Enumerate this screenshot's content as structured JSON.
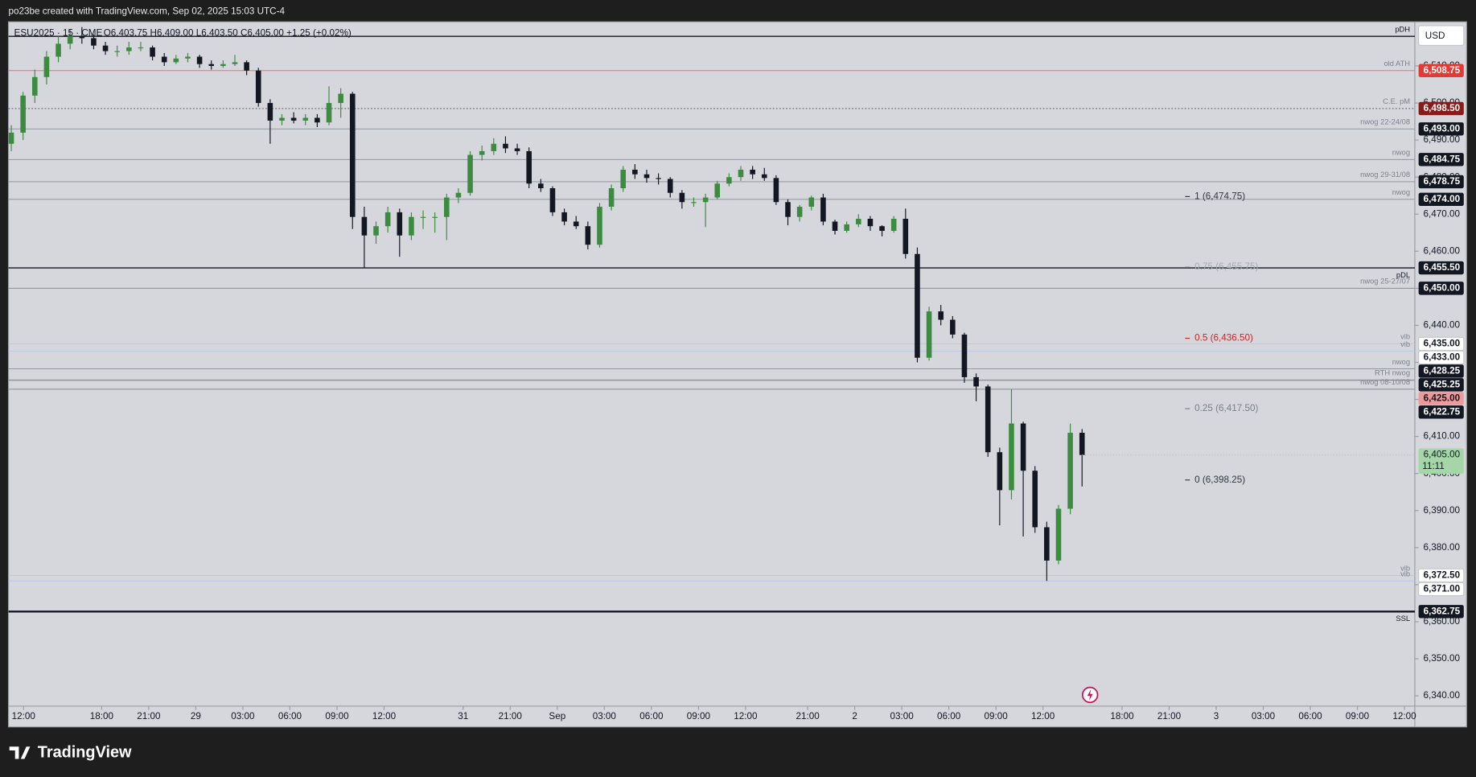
{
  "header": {
    "text": "po23be created with TradingView.com, Sep 02, 2025 15:03 UTC-4"
  },
  "footer": {
    "logo": "TradingView"
  },
  "chart_data": {
    "type": "candlestick",
    "symbol_info": "ESU2025 · 15 · CME",
    "legend_text": "O6,403.75  H6,409.00  L6,403.50  C6,405.00  +1.25 (+0.02%)",
    "currency": "USD",
    "up_color": "#3d8b40",
    "down_color": "#131722",
    "ohlc": [
      [
        6489,
        6494,
        6487,
        6492
      ],
      [
        6492,
        6503,
        6490,
        6502
      ],
      [
        6502,
        6509,
        6500,
        6507
      ],
      [
        6507,
        6514,
        6505,
        6512.5
      ],
      [
        6512.5,
        6518,
        6511,
        6516
      ],
      [
        6516,
        6520,
        6514.5,
        6518
      ],
      [
        6518,
        6520.5,
        6516,
        6517.5
      ],
      [
        6517.5,
        6518.5,
        6514.5,
        6515.5
      ],
      [
        6515.5,
        6516.5,
        6513,
        6514
      ],
      [
        6514,
        6515.5,
        6512.5,
        6514
      ],
      [
        6514,
        6516.5,
        6513,
        6515
      ],
      [
        6515,
        6516.5,
        6514,
        6515
      ],
      [
        6515,
        6515.5,
        6511.5,
        6512.5
      ],
      [
        6512.5,
        6513.5,
        6510,
        6511
      ],
      [
        6511,
        6513,
        6510.5,
        6512
      ],
      [
        6512,
        6513.5,
        6511,
        6512.5
      ],
      [
        6512.5,
        6513,
        6509.5,
        6510.5
      ],
      [
        6510.5,
        6511.5,
        6509,
        6510
      ],
      [
        6510,
        6511.5,
        6509.5,
        6510.5
      ],
      [
        6510.5,
        6513,
        6510,
        6511
      ],
      [
        6511,
        6511.5,
        6507.5,
        6508.75
      ],
      [
        6508.75,
        6509.5,
        6499,
        6500
      ],
      [
        6500,
        6501,
        6489,
        6495.25
      ],
      [
        6495.25,
        6497,
        6494,
        6496
      ],
      [
        6496,
        6497.5,
        6494.5,
        6495.25
      ],
      [
        6495.25,
        6497,
        6494,
        6496
      ],
      [
        6496,
        6497,
        6493.5,
        6494.75
      ],
      [
        6494.75,
        6504.5,
        6494,
        6500
      ],
      [
        6500,
        6504,
        6496,
        6502.5
      ],
      [
        6502.5,
        6503,
        6466,
        6469.25
      ],
      [
        6469.25,
        6472,
        6455.5,
        6464.25
      ],
      [
        6464.25,
        6468,
        6462,
        6466.75
      ],
      [
        6466.75,
        6472,
        6465,
        6470.5
      ],
      [
        6470.5,
        6471.5,
        6458.5,
        6464.25
      ],
      [
        6464.25,
        6470.5,
        6463,
        6469.25
      ],
      [
        6469.25,
        6471,
        6466,
        6469.25
      ],
      [
        6469.25,
        6470.5,
        6465,
        6469.25
      ],
      [
        6469.25,
        6475.5,
        6463,
        6474.5
      ],
      [
        6474.5,
        6477,
        6473,
        6475.75
      ],
      [
        6475.75,
        6487,
        6475,
        6486
      ],
      [
        6486,
        6488.5,
        6484.5,
        6487
      ],
      [
        6487,
        6490.5,
        6486,
        6489
      ],
      [
        6489,
        6491,
        6486.5,
        6487.75
      ],
      [
        6487.75,
        6489,
        6486,
        6487
      ],
      [
        6487,
        6488,
        6477,
        6478.25
      ],
      [
        6478.25,
        6479.5,
        6476,
        6477
      ],
      [
        6477,
        6477.5,
        6469.5,
        6470.5
      ],
      [
        6470.5,
        6471.5,
        6467,
        6468
      ],
      [
        6468,
        6469.5,
        6466,
        6466.75
      ],
      [
        6466.75,
        6468,
        6460.5,
        6461.75
      ],
      [
        6461.75,
        6473,
        6461,
        6472
      ],
      [
        6472,
        6478,
        6471,
        6477
      ],
      [
        6477,
        6483,
        6476,
        6482
      ],
      [
        6482,
        6483.5,
        6479.5,
        6480.75
      ],
      [
        6480.75,
        6482,
        6478.5,
        6479.75
      ],
      [
        6479.75,
        6481,
        6478,
        6479.5
      ],
      [
        6479.5,
        6480,
        6474.5,
        6475.75
      ],
      [
        6475.75,
        6476.5,
        6471.5,
        6473.25
      ],
      [
        6473.25,
        6474.5,
        6472,
        6473.25
      ],
      [
        6473.25,
        6475.5,
        6466.5,
        6474.5
      ],
      [
        6474.5,
        6479,
        6474,
        6478.25
      ],
      [
        6478.25,
        6481,
        6477.5,
        6480
      ],
      [
        6480,
        6483,
        6479,
        6482
      ],
      [
        6482,
        6483,
        6479.5,
        6480.75
      ],
      [
        6480.75,
        6482.5,
        6479,
        6479.75
      ],
      [
        6479.75,
        6480.5,
        6472.5,
        6473.25
      ],
      [
        6473.25,
        6474,
        6467,
        6469.25
      ],
      [
        6469.25,
        6472.5,
        6468,
        6472
      ],
      [
        6472,
        6475,
        6471,
        6474.5
      ],
      [
        6474.5,
        6475.5,
        6467,
        6468
      ],
      [
        6468,
        6468.5,
        6464.5,
        6465.5
      ],
      [
        6465.5,
        6468,
        6465,
        6467.25
      ],
      [
        6467.25,
        6470,
        6466.5,
        6468.75
      ],
      [
        6468.75,
        6469.5,
        6465.5,
        6466.75
      ],
      [
        6466.75,
        6467,
        6464,
        6465.5
      ],
      [
        6465.5,
        6469.5,
        6465,
        6468.75
      ],
      [
        6468.75,
        6471.5,
        6458,
        6459.25
      ],
      [
        6459.25,
        6461,
        6430,
        6431.25
      ],
      [
        6431.25,
        6445,
        6430.5,
        6443.75
      ],
      [
        6443.75,
        6445.5,
        6440,
        6441.5
      ],
      [
        6441.5,
        6442.5,
        6436.5,
        6437.5
      ],
      [
        6437.5,
        6438,
        6424.5,
        6426
      ],
      [
        6426,
        6427,
        6419.5,
        6423.5
      ],
      [
        6423.5,
        6424,
        6404.5,
        6405.75
      ],
      [
        6405.75,
        6407,
        6386,
        6395.5
      ],
      [
        6395.5,
        6422.75,
        6393,
        6413.5
      ],
      [
        6413.5,
        6414,
        6383,
        6400.75
      ],
      [
        6400.75,
        6402,
        6384,
        6385.5
      ],
      [
        6385.5,
        6387,
        6371,
        6376.5
      ],
      [
        6376.5,
        6391.5,
        6375.5,
        6390.5
      ],
      [
        6390.5,
        6413.5,
        6389,
        6411
      ],
      [
        6411,
        6412,
        6396.5,
        6405
      ]
    ],
    "xlim": [
      -0.24,
      119.28
    ],
    "xticks": [
      {
        "value": 1.04,
        "label": "12:00"
      },
      {
        "value": 7.68,
        "label": "18:00"
      },
      {
        "value": 11.68,
        "label": "21:00"
      },
      {
        "value": 15.68,
        "label": "29"
      },
      {
        "value": 19.68,
        "label": "03:00"
      },
      {
        "value": 23.68,
        "label": "06:00"
      },
      {
        "value": 27.68,
        "label": "09:00"
      },
      {
        "value": 31.68,
        "label": "12:00"
      },
      {
        "value": 38.4,
        "label": "31"
      },
      {
        "value": 42.4,
        "label": "21:00"
      },
      {
        "value": 46.4,
        "label": "Sep"
      },
      {
        "value": 50.4,
        "label": "03:00"
      },
      {
        "value": 54.4,
        "label": "06:00"
      },
      {
        "value": 58.4,
        "label": "09:00"
      },
      {
        "value": 62.4,
        "label": "12:00"
      },
      {
        "value": 67.68,
        "label": "21:00"
      },
      {
        "value": 71.68,
        "label": "2"
      },
      {
        "value": 75.68,
        "label": "03:00"
      },
      {
        "value": 79.68,
        "label": "06:00"
      },
      {
        "value": 83.68,
        "label": "09:00"
      },
      {
        "value": 87.68,
        "label": "12:00"
      },
      {
        "value": 94.4,
        "label": "18:00"
      },
      {
        "value": 98.4,
        "label": "21:00"
      },
      {
        "value": 102.4,
        "label": "3"
      },
      {
        "value": 106.4,
        "label": "03:00"
      },
      {
        "value": 110.4,
        "label": "06:00"
      },
      {
        "value": 114.4,
        "label": "09:00"
      },
      {
        "value": 118.4,
        "label": "12:00"
      }
    ],
    "ylim": [
      6337.2,
      6521.9
    ],
    "yticks": [
      {
        "value": 6340,
        "label": "6,340.00"
      },
      {
        "value": 6350,
        "label": "6,350.00"
      },
      {
        "value": 6360,
        "label": "6,360.00"
      },
      {
        "value": 6370,
        "label": "6,370.00"
      },
      {
        "value": 6380,
        "label": "6,380.00"
      },
      {
        "value": 6390,
        "label": "6,390.00"
      },
      {
        "value": 6400,
        "label": "6,400.00"
      },
      {
        "value": 6410,
        "label": "6,410.00"
      },
      {
        "value": 6420,
        "label": "6,420.00"
      },
      {
        "value": 6430,
        "label": "6,430.00"
      },
      {
        "value": 6440,
        "label": "6,440.00"
      },
      {
        "value": 6450,
        "label": "6,450.00"
      },
      {
        "value": 6460,
        "label": "6,460.00"
      },
      {
        "value": 6470,
        "label": "6,470.00"
      },
      {
        "value": 6480,
        "label": "6,480.00"
      },
      {
        "value": 6490,
        "label": "6,490.00"
      },
      {
        "value": 6500,
        "label": "6,500.00"
      },
      {
        "value": 6510,
        "label": "6,510.00"
      }
    ],
    "levels": [
      {
        "name": "pDH",
        "price": 6518,
        "line_color": "#131722",
        "width": 1.2,
        "label_position": "above"
      },
      {
        "name": "old ATH",
        "price": 6508.75,
        "price_label": "6,508.75",
        "line_color": "#e57373",
        "badge_color": "#e53935"
      },
      {
        "name": "C.E. pM",
        "price": 6498.5,
        "price_label": "6,498.50",
        "line_color": "#444",
        "dashed": true,
        "badge_color": "#8b1a1a"
      },
      {
        "name": "nwog 22-24/08",
        "price": 6493,
        "price_label": "6,493.00",
        "line_color": "#8a8d96",
        "badge_color": "#131722"
      },
      {
        "name": "nwog",
        "price": 6484.75,
        "price_label": "6,484.75",
        "line_color": "#8a8d96",
        "badge_color": "#131722"
      },
      {
        "name": "nwog 29-31/08",
        "price": 6478.75,
        "price_label": "6,478.75",
        "line_color": "#8a8d96",
        "badge_color": "#131722"
      },
      {
        "name": "nwog",
        "price": 6474,
        "price_label": "6,474.00",
        "line_color": "#8a8d96",
        "badge_color": "#131722"
      },
      {
        "name": "pDL",
        "price": 6455.5,
        "price_label": "6,455.50",
        "line_color": "#131722",
        "width": 1.2,
        "badge_color": "#131722",
        "label_position": "below"
      },
      {
        "name": "nwog 25-27/07",
        "price": 6450,
        "price_label": "6,450.00",
        "line_color": "#8a8d96",
        "badge_color": "#131722"
      },
      {
        "name": "vib",
        "price": 6435,
        "price_label": "6,435.00",
        "line_color": "#b9c6e6",
        "badge_color": "#ffffff"
      },
      {
        "name": "vib",
        "price": 6433,
        "price_label": "6,433.00",
        "line_color": "#b9c6e6",
        "badge_color": "#ffffff"
      },
      {
        "name": "nwog",
        "price": 6428.25,
        "price_label": "6,428.25",
        "line_color": "#8a8d96",
        "badge_color": "#131722"
      },
      {
        "name": "RTH nwog",
        "price": 6425.25,
        "price_label": "6,425.25",
        "line_color": "#8a8d96",
        "badge_color": "#131722"
      },
      {
        "price": 6425,
        "price_label": "6,425.00",
        "line_color": "#e8a0a8",
        "badge_color": "#ef9a9a"
      },
      {
        "name": "nwog 08-10/08",
        "price": 6422.75,
        "price_label": "6,422.75",
        "line_color": "#8a8d96",
        "badge_color": "#131722"
      },
      {
        "name": "vib",
        "price": 6372.5,
        "price_label": "6,372.50",
        "line_color": "#b9c6e6",
        "badge_color": "#ffffff"
      },
      {
        "name": "vib",
        "price": 6371,
        "price_label": "6,371.00",
        "line_color": "#b9c6e6",
        "badge_color": "#ffffff"
      },
      {
        "name": "SSL",
        "price": 6362.75,
        "price_label": "6,362.75",
        "line_color": "#131722",
        "width": 2,
        "badge_color": "#131722",
        "label_position": "below"
      }
    ],
    "fib": [
      {
        "price": 6474.75,
        "label": "1 (6,474.75)",
        "color": "#333740"
      },
      {
        "price": 6455.75,
        "label": "0.75 (6,455.75)",
        "color": "#a6aab4"
      },
      {
        "price": 6436.5,
        "label": "0.5 (6,436.50)",
        "color": "#c62828"
      },
      {
        "price": 6417.5,
        "label": "0.25 (6,417.50)",
        "color": "#7a7e8a"
      },
      {
        "price": 6398.25,
        "label": "0 (6,398.25)",
        "color": "#333740"
      }
    ],
    "last_price": {
      "price": 6405,
      "price_label": "6,405.00",
      "countdown": "11:11",
      "color": "#a5d6a7"
    }
  }
}
